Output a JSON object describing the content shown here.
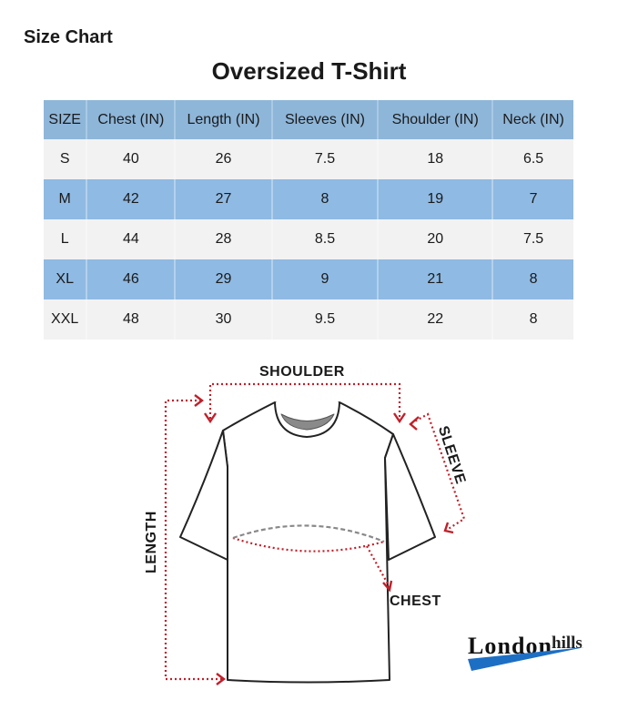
{
  "header": {
    "label": "Size Chart",
    "title": "Oversized T-Shirt"
  },
  "table": {
    "columns": [
      "SIZE",
      "Chest (IN)",
      "Length (IN)",
      "Sleeves (IN)",
      "Shoulder (IN)",
      "Neck (IN)"
    ],
    "rows": [
      [
        "S",
        "40",
        "26",
        "7.5",
        "18",
        "6.5"
      ],
      [
        "M",
        "42",
        "27",
        "8",
        "19",
        "7"
      ],
      [
        "L",
        "44",
        "28",
        "8.5",
        "20",
        "7.5"
      ],
      [
        "XL",
        "46",
        "29",
        "9",
        "21",
        "8"
      ],
      [
        "XXL",
        "48",
        "30",
        "9.5",
        "22",
        "8"
      ]
    ]
  },
  "diagram": {
    "shoulder": "SHOULDER",
    "sleeve": "SLEEVE",
    "length": "LENGTH",
    "chest": "CHEST"
  },
  "logo": {
    "text": "London hills",
    "accent": "#1d6fc4"
  },
  "colors": {
    "header_bg": "#8eb6d9",
    "row_alt": "#8fbae3",
    "row_light": "#f2f2f2",
    "measure_line": "#c0202a"
  }
}
